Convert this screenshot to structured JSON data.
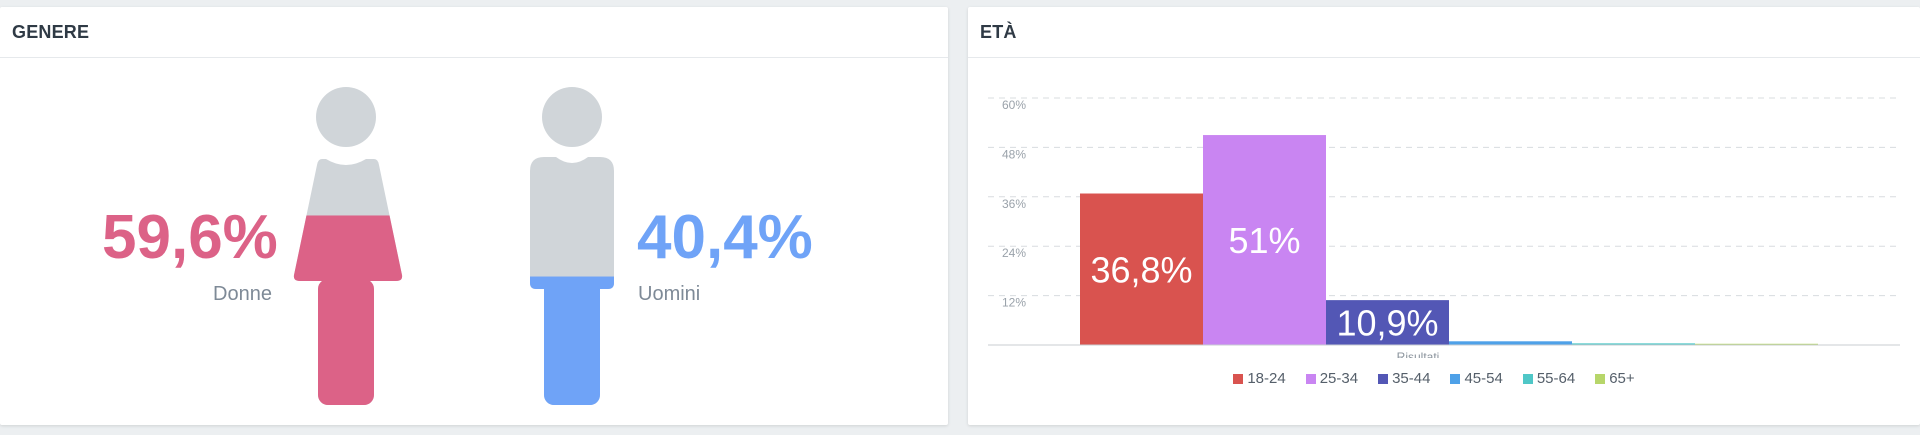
{
  "gender": {
    "title": "GENERE",
    "women": {
      "value": 59.6,
      "label": "59,6%",
      "name": "Donne",
      "color": "#dc6287"
    },
    "men": {
      "value": 40.4,
      "label": "40,4%",
      "name": "Uomini",
      "color": "#6fa3f7"
    },
    "figure_base_color": "#d0d5d9"
  },
  "age": {
    "title": "ETÀ"
  },
  "chart_data": {
    "type": "bar",
    "title": "",
    "xlabel": "Risultati",
    "ylabel": "",
    "ylim": [
      0,
      60
    ],
    "yticks": [
      "12%",
      "24%",
      "36%",
      "48%",
      "60%"
    ],
    "ytick_values": [
      12,
      24,
      36,
      48,
      60
    ],
    "grid": true,
    "legend_position": "bottom",
    "categories": [
      "Risultati"
    ],
    "series": [
      {
        "name": "18-24",
        "values": [
          36.8
        ],
        "label": "36,8%",
        "color": "#d9534f"
      },
      {
        "name": "25-34",
        "values": [
          51
        ],
        "label": "51%",
        "color": "#c985f2"
      },
      {
        "name": "35-44",
        "values": [
          10.9
        ],
        "label": "10,9%",
        "color": "#5357b5"
      },
      {
        "name": "45-54",
        "values": [
          0.9
        ],
        "label": "",
        "color": "#4ea1e8"
      },
      {
        "name": "55-64",
        "values": [
          0.4
        ],
        "label": "",
        "color": "#4fc7c7"
      },
      {
        "name": "65+",
        "values": [
          0.3
        ],
        "label": "",
        "color": "#b7d66a"
      }
    ]
  }
}
